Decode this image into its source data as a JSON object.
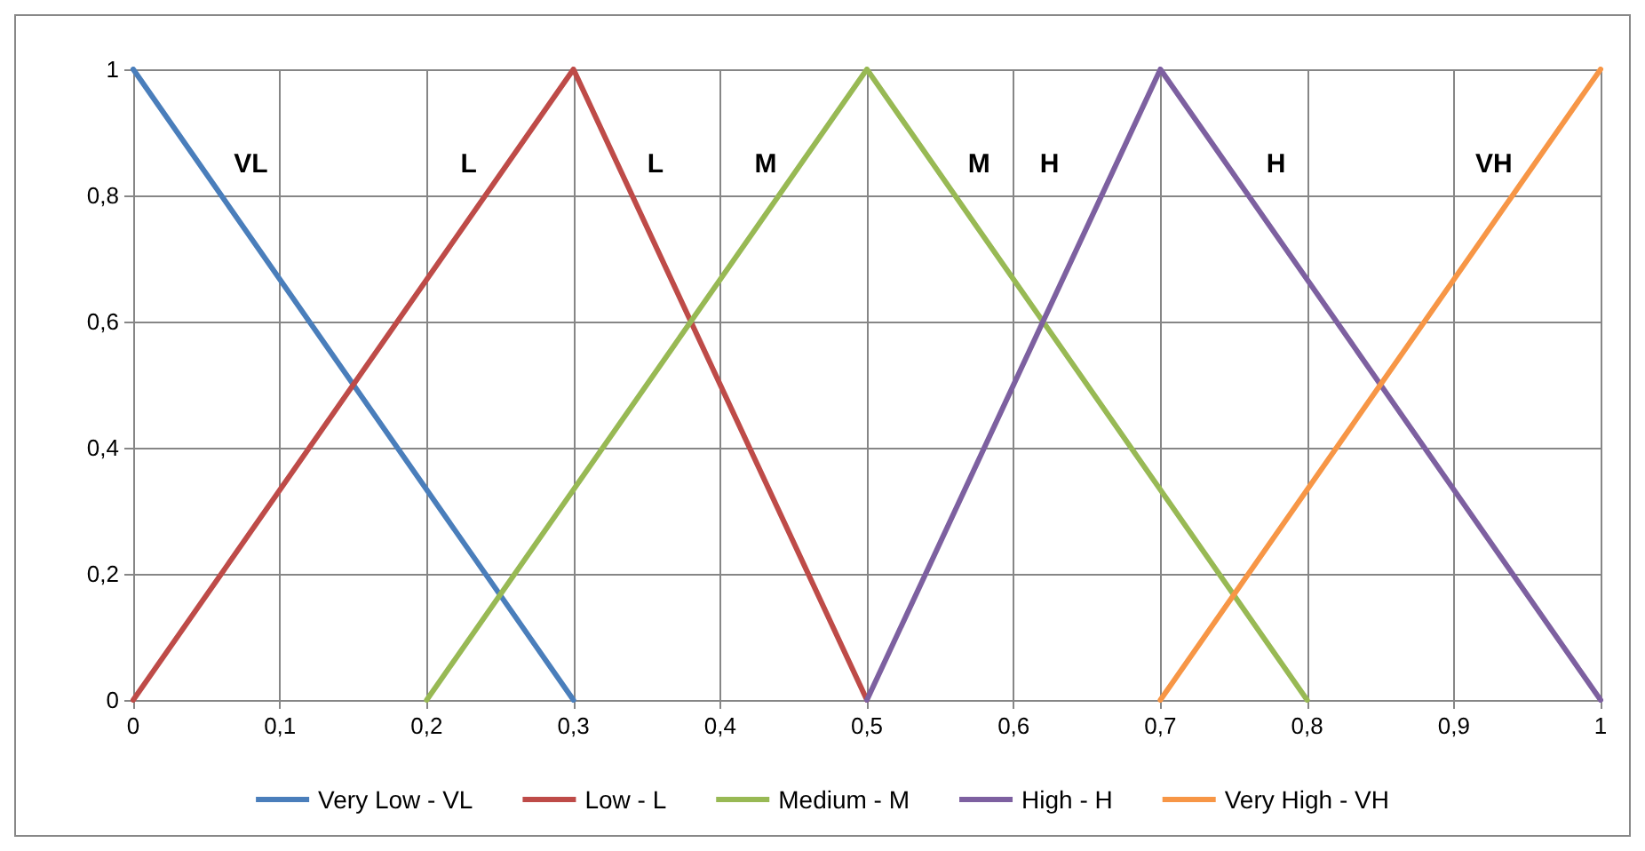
{
  "chart_data": {
    "type": "line",
    "series": [
      {
        "name": "Very Low - VL",
        "color": "#4a7ebb",
        "x": [
          0,
          0.3
        ],
        "values": [
          1,
          0
        ]
      },
      {
        "name": "Low - L",
        "color": "#be4b48",
        "x": [
          0,
          0.3,
          0.5
        ],
        "values": [
          0,
          1,
          0
        ]
      },
      {
        "name": "Medium - M",
        "color": "#98b954",
        "x": [
          0.2,
          0.5,
          0.8
        ],
        "values": [
          0,
          1,
          0
        ]
      },
      {
        "name": "High - H",
        "color": "#7d60a0",
        "x": [
          0.5,
          0.7,
          1
        ],
        "values": [
          0,
          1,
          0
        ]
      },
      {
        "name": "Very High - VH",
        "color": "#f79646",
        "x": [
          0.7,
          1
        ],
        "values": [
          0,
          1
        ]
      }
    ],
    "xlim": [
      0,
      1
    ],
    "xticks": [
      {
        "value": 0,
        "label": "0"
      },
      {
        "value": 0.1,
        "label": "0,1"
      },
      {
        "value": 0.2,
        "label": "0,2"
      },
      {
        "value": 0.3,
        "label": "0,3"
      },
      {
        "value": 0.4,
        "label": "0,4"
      },
      {
        "value": 0.5,
        "label": "0,5"
      },
      {
        "value": 0.6,
        "label": "0,6"
      },
      {
        "value": 0.7,
        "label": "0,7"
      },
      {
        "value": 0.8,
        "label": "0,8"
      },
      {
        "value": 0.9,
        "label": "0,9"
      },
      {
        "value": 1,
        "label": "1"
      }
    ],
    "ylim": [
      0,
      1
    ],
    "yticks": [
      {
        "value": 0,
        "label": "0"
      },
      {
        "value": 0.2,
        "label": "0,2"
      },
      {
        "value": 0.4,
        "label": "0,4"
      },
      {
        "value": 0.6,
        "label": "0,6"
      },
      {
        "value": 0.8,
        "label": "0,8"
      },
      {
        "value": 1,
        "label": "1"
      }
    ],
    "annotations": [
      "VL",
      "L",
      "L",
      "M",
      "M",
      "H",
      "H",
      "VH"
    ],
    "grid": true,
    "legend": "bottom",
    "marker": "none",
    "line_style": "solid"
  }
}
